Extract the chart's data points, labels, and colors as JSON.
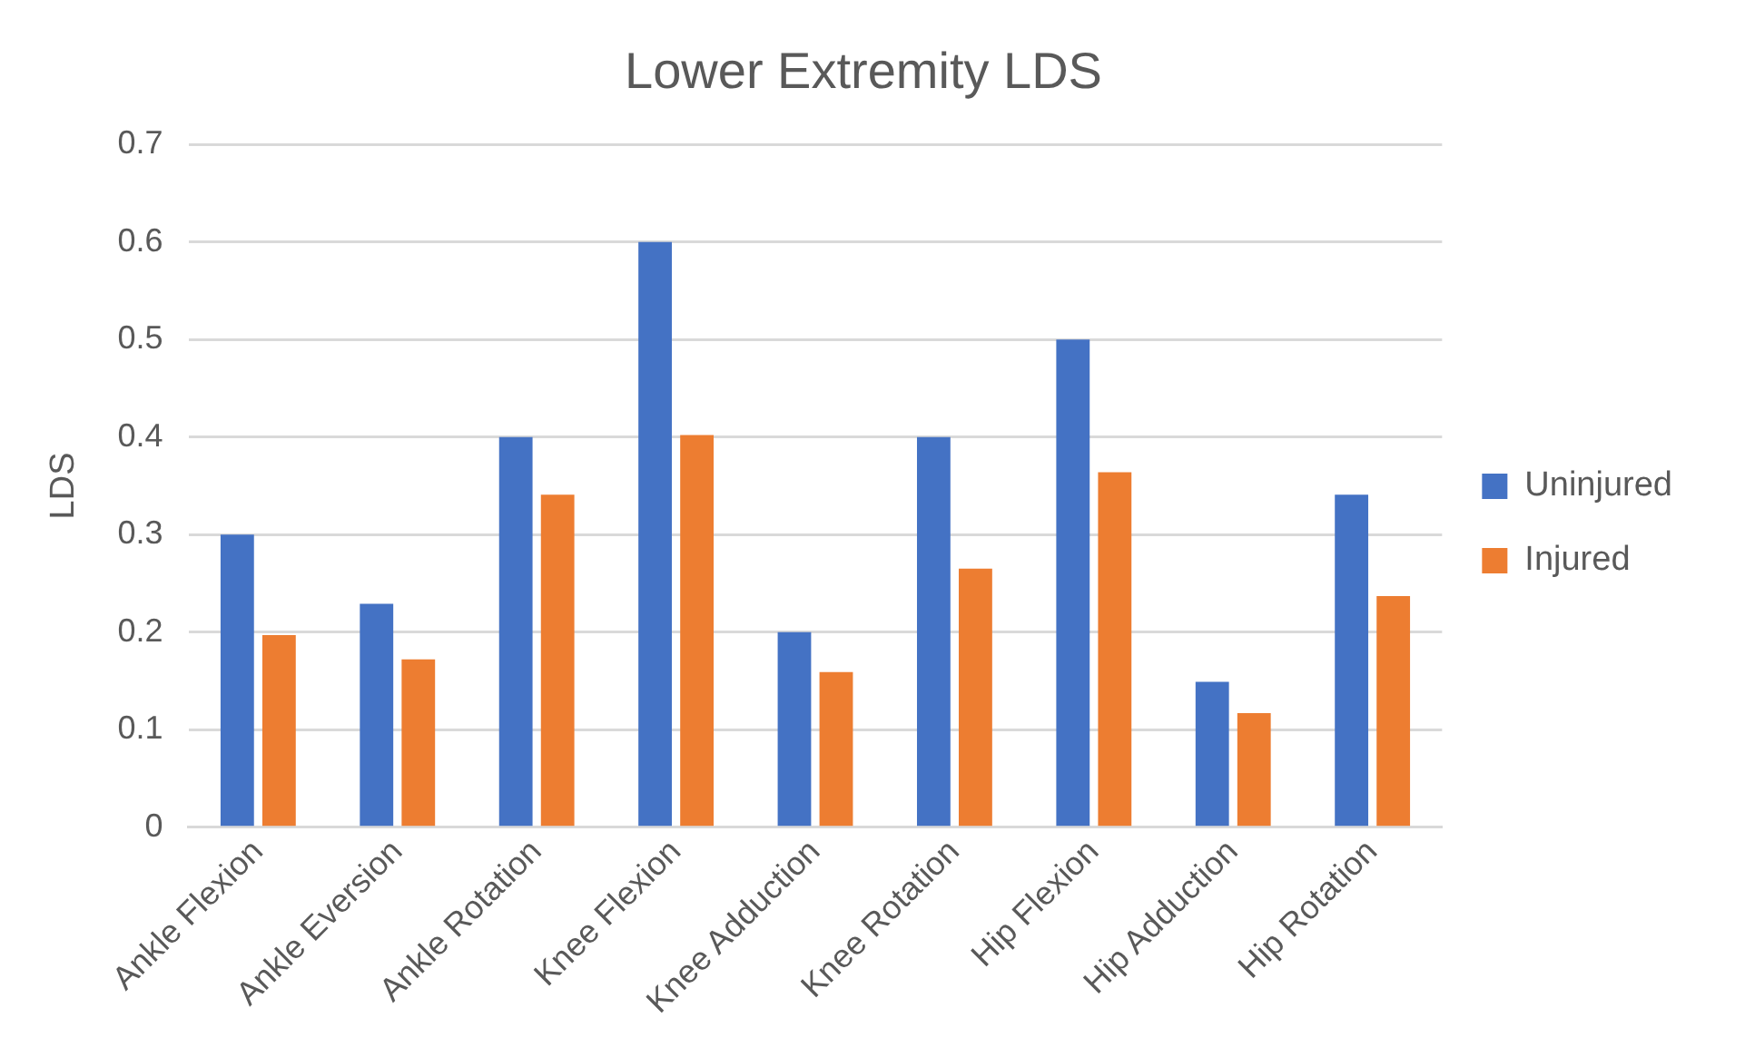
{
  "chart_data": {
    "type": "bar",
    "title": "Lower Extremity LDS",
    "ylabel": "LDS",
    "categories": [
      "Ankle Flexion",
      "Ankle Eversion",
      "Ankle Rotation",
      "Knee Flexion",
      "Knee Adduction",
      "Knee Rotation",
      "Hip Flexion",
      "Hip Adduction",
      "Hip Rotation"
    ],
    "series": [
      {
        "name": "Uninjured",
        "color": "#4472c4",
        "values": [
          0.3,
          0.229,
          0.4,
          0.6,
          0.2,
          0.4,
          0.5,
          0.149,
          0.341
        ]
      },
      {
        "name": "Injured",
        "color": "#ed7d31",
        "values": [
          0.197,
          0.172,
          0.341,
          0.402,
          0.159,
          0.265,
          0.364,
          0.117,
          0.237
        ]
      }
    ],
    "ylim": [
      0,
      0.7
    ],
    "yticks": [
      0,
      0.1,
      0.2,
      0.3,
      0.4,
      0.5,
      0.6,
      0.7
    ],
    "grid": "y",
    "legend": "right"
  }
}
